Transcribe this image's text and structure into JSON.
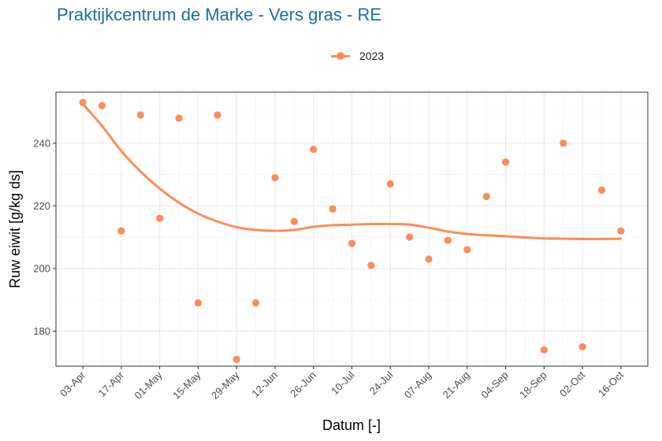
{
  "chart_data": {
    "type": "scatter",
    "title": "Praktijkcentrum de Marke - Vers gras - RE",
    "xlabel": "Datum [-]",
    "ylabel": "Ruw eiwit [g/kg ds]",
    "x_tick_labels": [
      "03-Apr",
      "17-Apr",
      "01-May",
      "15-May",
      "29-May",
      "12-Jun",
      "26-Jun",
      "10-Jul",
      "24-Jul",
      "07-Aug",
      "21-Aug",
      "04-Sep",
      "18-Sep",
      "02-Oct",
      "16-Oct"
    ],
    "x_tick_days": [
      0,
      14,
      28,
      42,
      56,
      70,
      84,
      98,
      112,
      126,
      140,
      154,
      168,
      182,
      196
    ],
    "x_range_days": [
      -9.8,
      205.8
    ],
    "y_ticks": [
      180,
      200,
      220,
      240
    ],
    "ylim": [
      168.8,
      256.3
    ],
    "grid": true,
    "legend_position": "top",
    "series": [
      {
        "name": "2023",
        "color": "#fc8d59",
        "points": [
          {
            "date": "03-Apr",
            "day": 0,
            "value": 253
          },
          {
            "date": "10-Apr",
            "day": 7,
            "value": 252
          },
          {
            "date": "17-Apr",
            "day": 14,
            "value": 212
          },
          {
            "date": "24-Apr",
            "day": 21,
            "value": 249
          },
          {
            "date": "01-May",
            "day": 28,
            "value": 216
          },
          {
            "date": "08-May",
            "day": 35,
            "value": 248
          },
          {
            "date": "15-May",
            "day": 42,
            "value": 189
          },
          {
            "date": "22-May",
            "day": 49,
            "value": 249
          },
          {
            "date": "29-May",
            "day": 56,
            "value": 171
          },
          {
            "date": "05-Jun",
            "day": 63,
            "value": 189
          },
          {
            "date": "12-Jun",
            "day": 70,
            "value": 229
          },
          {
            "date": "19-Jun",
            "day": 77,
            "value": 215
          },
          {
            "date": "26-Jun",
            "day": 84,
            "value": 238
          },
          {
            "date": "03-Jul",
            "day": 91,
            "value": 219
          },
          {
            "date": "10-Jul",
            "day": 98,
            "value": 208
          },
          {
            "date": "17-Jul",
            "day": 105,
            "value": 201
          },
          {
            "date": "24-Jul",
            "day": 112,
            "value": 227
          },
          {
            "date": "31-Jul",
            "day": 119,
            "value": 210
          },
          {
            "date": "07-Aug",
            "day": 126,
            "value": 203
          },
          {
            "date": "14-Aug",
            "day": 133,
            "value": 209
          },
          {
            "date": "21-Aug",
            "day": 140,
            "value": 206
          },
          {
            "date": "28-Aug",
            "day": 147,
            "value": 223
          },
          {
            "date": "04-Sep",
            "day": 154,
            "value": 234
          },
          {
            "date": "18-Sep",
            "day": 168,
            "value": 174
          },
          {
            "date": "25-Sep",
            "day": 175,
            "value": 240
          },
          {
            "date": "02-Oct",
            "day": 182,
            "value": 175
          },
          {
            "date": "09-Oct",
            "day": 189,
            "value": 225
          },
          {
            "date": "16-Oct",
            "day": 196,
            "value": 212
          }
        ],
        "trend": [
          {
            "day": 0,
            "value": 252.5
          },
          {
            "day": 7,
            "value": 245.5
          },
          {
            "day": 14,
            "value": 237.5
          },
          {
            "day": 21,
            "value": 231
          },
          {
            "day": 28,
            "value": 225.5
          },
          {
            "day": 35,
            "value": 221
          },
          {
            "day": 42,
            "value": 217.5
          },
          {
            "day": 49,
            "value": 215
          },
          {
            "day": 56,
            "value": 213.2
          },
          {
            "day": 63,
            "value": 212.3
          },
          {
            "day": 70,
            "value": 212
          },
          {
            "day": 77,
            "value": 212.3
          },
          {
            "day": 84,
            "value": 213.3
          },
          {
            "day": 91,
            "value": 213.8
          },
          {
            "day": 98,
            "value": 214
          },
          {
            "day": 105,
            "value": 214.2
          },
          {
            "day": 112,
            "value": 214.2
          },
          {
            "day": 119,
            "value": 214
          },
          {
            "day": 126,
            "value": 213
          },
          {
            "day": 133,
            "value": 211.8
          },
          {
            "day": 140,
            "value": 211
          },
          {
            "day": 147,
            "value": 210.6
          },
          {
            "day": 154,
            "value": 210.3
          },
          {
            "day": 161,
            "value": 209.9
          },
          {
            "day": 168,
            "value": 209.6
          },
          {
            "day": 175,
            "value": 209.5
          },
          {
            "day": 182,
            "value": 209.4
          },
          {
            "day": 189,
            "value": 209.4
          },
          {
            "day": 196,
            "value": 209.5
          }
        ]
      }
    ]
  }
}
